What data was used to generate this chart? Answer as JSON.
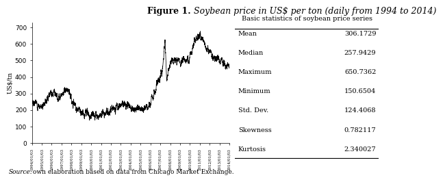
{
  "title_normal": "Figure 1.",
  "title_italic": " Soybean price in US$ per ton (daily from 1994 to 2014)",
  "ylabel": "US$/tn",
  "source_italic": "Source:",
  "source_normal": " own elaboration based on data from Chicago Market Exchange.",
  "table_title": "Basic statistics of soybean price series",
  "stats": [
    [
      "Mean",
      "306.1729"
    ],
    [
      "Median",
      "257.9429"
    ],
    [
      "Maximum",
      "650.7362"
    ],
    [
      "Minimum",
      "150.6504"
    ],
    [
      "Std. Dev.",
      "124.4068"
    ],
    [
      "Skewness",
      "0.782117"
    ],
    [
      "Kurtosis",
      "2.340027"
    ]
  ],
  "yticks": [
    0,
    100,
    200,
    300,
    400,
    500,
    600,
    700
  ],
  "line_color": "#000000",
  "line_width": 0.55,
  "background_color": "#ffffff",
  "font_family": "serif",
  "title_fontsize": 9.0,
  "axis_fontsize": 6.5,
  "table_fontsize": 7.0,
  "source_fontsize": 6.5,
  "keypoints_x": [
    0,
    260,
    500,
    700,
    900,
    1200,
    1500,
    1800,
    2100,
    2400,
    2600,
    2800,
    3000,
    3100,
    3200,
    3350,
    3450,
    3520,
    3560,
    3650,
    3750,
    3850,
    3950,
    4050,
    4150,
    4300,
    4450,
    4600,
    4750,
    4900,
    5050,
    5218
  ],
  "keypoints_y": [
    255,
    215,
    315,
    275,
    325,
    200,
    170,
    175,
    200,
    230,
    210,
    210,
    215,
    230,
    290,
    380,
    450,
    610,
    380,
    490,
    500,
    510,
    480,
    505,
    520,
    620,
    650,
    590,
    530,
    510,
    480,
    470
  ]
}
